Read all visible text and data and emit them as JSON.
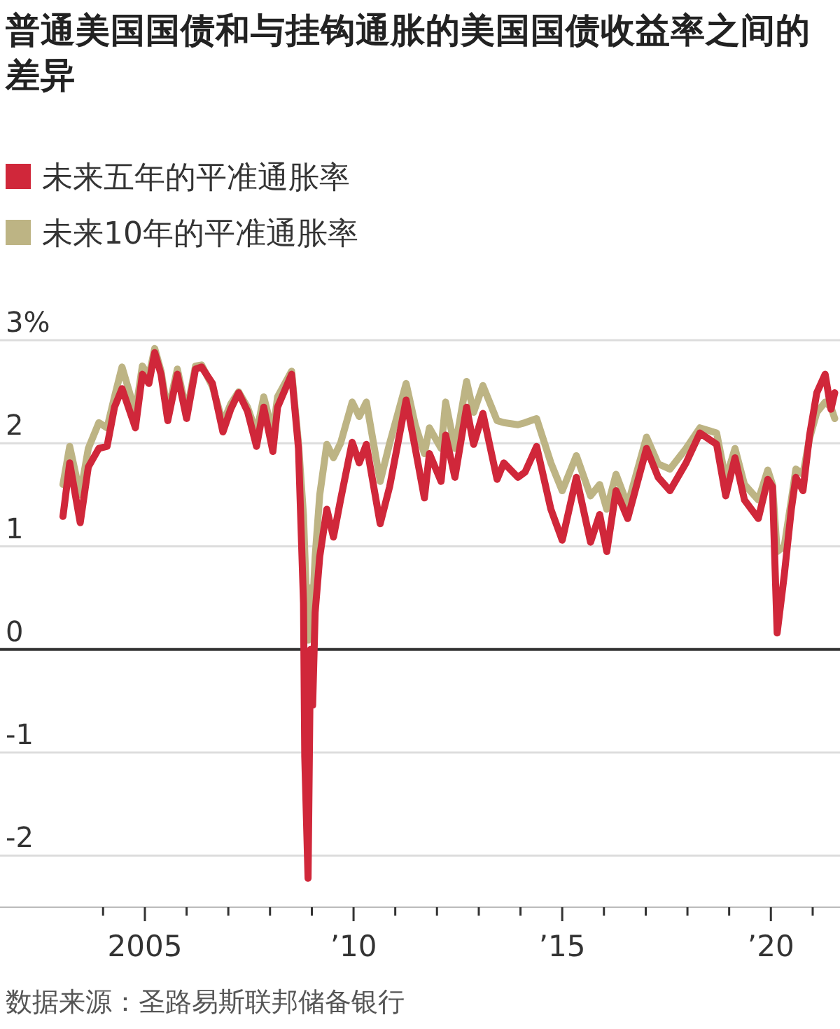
{
  "chart_data": {
    "type": "line",
    "title": "普通美国国债和与挂钩通胀的美国国债收益率之间的差异",
    "x": [
      "2003-01-15",
      "2003-03-15",
      "2003-06-15",
      "2003-08-25",
      "2003-11-25",
      "2004-02-05",
      "2004-04-10",
      "2004-06-15",
      "2004-10-10",
      "2004-12-10",
      "2005-02-05",
      "2005-03-28",
      "2005-05-22",
      "2005-07-20",
      "2005-10-12",
      "2006-01-01",
      "2006-03-20",
      "2006-05-12",
      "2006-08-15",
      "2006-11-15",
      "2007-01-22",
      "2007-04-01",
      "2007-06-18",
      "2007-09-05",
      "2007-11-07",
      "2008-01-26",
      "2008-03-07",
      "2008-07-08",
      "2008-09-06",
      "2008-10-20",
      "2008-10-31",
      "2008-11-29",
      "2008-12-20",
      "2009-01-08",
      "2009-01-30",
      "2009-03-11",
      "2009-05-12",
      "2009-07-09",
      "2009-09-09",
      "2009-12-20",
      "2010-02-20",
      "2010-04-23",
      "2010-08-22",
      "2010-11-13",
      "2011-04-06",
      "2011-06-25",
      "2011-09-13",
      "2011-10-27",
      "2012-02-06",
      "2012-03-17",
      "2012-06-06",
      "2012-09-16",
      "2012-11-17",
      "2013-02-06",
      "2013-06-10",
      "2013-08-08",
      "2013-12-09",
      "2014-02-10",
      "2014-05-22",
      "2014-09-24",
      "2015-01-01",
      "2015-05-05",
      "2015-09-06",
      "2015-11-25",
      "2016-01-26",
      "2016-04-16",
      "2016-07-27",
      "2017-01-08",
      "2017-04-20",
      "2017-08-01",
      "2017-12-20",
      "2018-04-20",
      "2018-09-13",
      "2018-12-02",
      "2019-02-21",
      "2019-05-15",
      "2019-09-13",
      "2019-12-05",
      "2020-01-15",
      "2020-02-25",
      "2020-04-27",
      "2020-06-28",
      "2020-08-07",
      "2020-10-08",
      "2020-12-05",
      "2021-02-06",
      "2021-04-20",
      "2021-06-10",
      "2021-07-13"
    ],
    "series": [
      {
        "name": "未来五年的平准通胀率",
        "color": "#d0273a",
        "values": [
          1.29,
          1.81,
          1.23,
          1.77,
          1.95,
          1.97,
          2.35,
          2.53,
          2.15,
          2.67,
          2.58,
          2.88,
          2.67,
          2.22,
          2.67,
          2.24,
          2.72,
          2.74,
          2.58,
          2.11,
          2.33,
          2.49,
          2.31,
          1.97,
          2.35,
          1.92,
          2.35,
          2.67,
          1.95,
          0.45,
          -1.04,
          -2.22,
          0.0,
          -0.54,
          0.36,
          0.9,
          1.36,
          1.09,
          1.45,
          2.01,
          1.81,
          1.99,
          1.22,
          1.58,
          2.42,
          1.95,
          1.47,
          1.9,
          1.63,
          2.08,
          1.67,
          2.35,
          1.99,
          2.29,
          1.65,
          1.81,
          1.67,
          1.72,
          1.97,
          1.36,
          1.06,
          1.67,
          1.04,
          1.31,
          0.95,
          1.54,
          1.27,
          1.95,
          1.67,
          1.54,
          1.81,
          2.1,
          1.99,
          1.49,
          1.86,
          1.45,
          1.27,
          1.65,
          1.58,
          0.16,
          0.72,
          1.36,
          1.67,
          1.54,
          2.08,
          2.49,
          2.67,
          2.33,
          2.49
        ]
      },
      {
        "name": "未来10年的平准通胀率",
        "color": "#bdb484",
        "values": [
          1.6,
          1.97,
          1.5,
          1.95,
          2.2,
          2.15,
          2.45,
          2.74,
          2.3,
          2.75,
          2.65,
          2.92,
          2.7,
          2.3,
          2.72,
          2.3,
          2.75,
          2.76,
          2.55,
          2.2,
          2.38,
          2.5,
          2.35,
          2.1,
          2.45,
          2.1,
          2.45,
          2.7,
          2.0,
          1.3,
          0.95,
          0.09,
          0.6,
          0.4,
          0.9,
          1.5,
          1.99,
          1.86,
          2.0,
          2.4,
          2.26,
          2.4,
          1.63,
          2.0,
          2.58,
          2.18,
          1.9,
          2.15,
          1.95,
          2.4,
          1.95,
          2.6,
          2.3,
          2.56,
          2.22,
          2.2,
          2.18,
          2.2,
          2.24,
          1.81,
          1.54,
          1.88,
          1.49,
          1.6,
          1.36,
          1.7,
          1.4,
          2.06,
          1.8,
          1.75,
          1.95,
          2.15,
          2.1,
          1.65,
          1.95,
          1.6,
          1.45,
          1.74,
          1.6,
          0.95,
          1.0,
          1.45,
          1.75,
          1.7,
          2.05,
          2.3,
          2.4,
          2.35,
          2.24
        ]
      }
    ],
    "xlim": [
      "2001-07-13",
      "2021-08-28"
    ],
    "xticks": [
      {
        "value": "2004",
        "label": null
      },
      {
        "value": "2005",
        "label": "2005"
      },
      {
        "value": "2006",
        "label": null
      },
      {
        "value": "2007",
        "label": null
      },
      {
        "value": "2008",
        "label": null
      },
      {
        "value": "2009",
        "label": null
      },
      {
        "value": "2010",
        "label": "’10"
      },
      {
        "value": "2011",
        "label": null
      },
      {
        "value": "2012",
        "label": null
      },
      {
        "value": "2013",
        "label": null
      },
      {
        "value": "2014",
        "label": null
      },
      {
        "value": "2015",
        "label": "’15"
      },
      {
        "value": "2016",
        "label": null
      },
      {
        "value": "2017",
        "label": null
      },
      {
        "value": "2018",
        "label": null
      },
      {
        "value": "2019",
        "label": null
      },
      {
        "value": "2020",
        "label": "’20"
      },
      {
        "value": "2021",
        "label": null
      }
    ],
    "ylim": [
      -2.5,
      3
    ],
    "yticks": [
      -2,
      -1,
      0,
      1,
      2,
      {
        "value": 3,
        "label": "3%"
      }
    ],
    "grid": "y",
    "legend": "top left",
    "ref_lines": [
      {
        "axis": "y",
        "value": 0,
        "color": "#333333"
      }
    ],
    "annotations": [
      "数据来源：圣路易斯联邦储备银行"
    ]
  }
}
